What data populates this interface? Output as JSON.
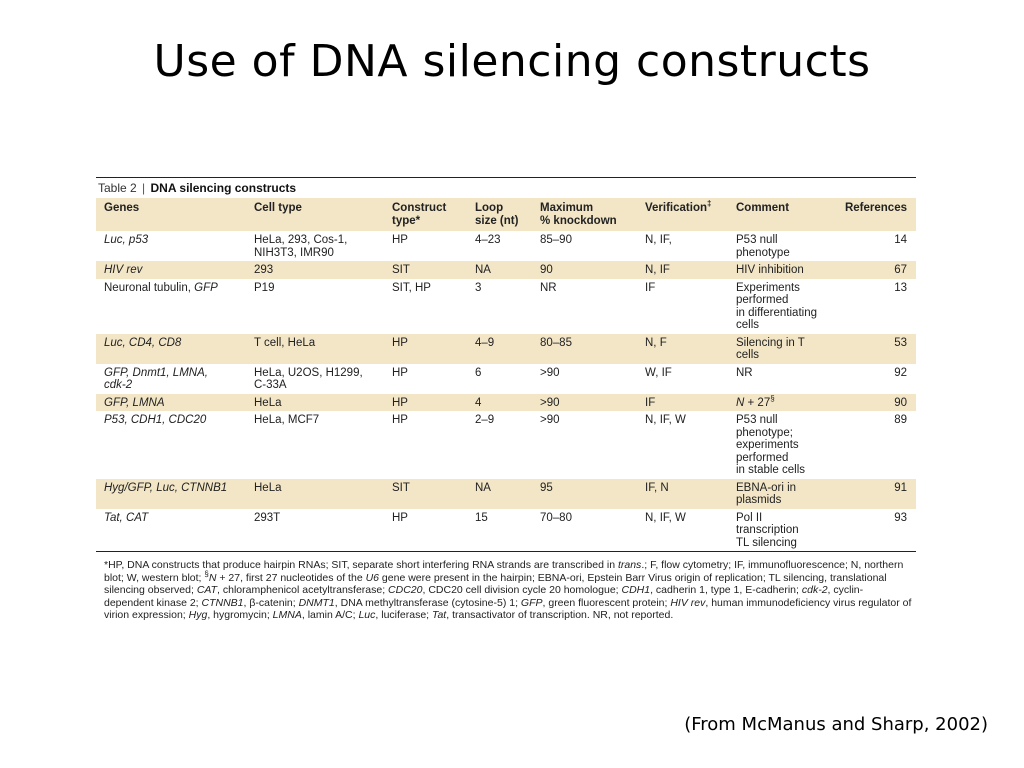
{
  "slide": {
    "title": "Use of DNA silencing constructs",
    "citation": "(From McManus and Sharp, 2002)"
  },
  "table": {
    "number": "Table 2",
    "separator": "|",
    "title": "DNA silencing constructs",
    "headers": {
      "genes": "Genes",
      "cell_type": "Cell type",
      "construct_1": "Construct",
      "construct_2": "type*",
      "loop_1": "Loop",
      "loop_2": "size (nt)",
      "maximum_1": "Maximum",
      "maximum_2": "% knockdown",
      "verification": "Verification",
      "verification_mark": "‡",
      "comment": "Comment",
      "references": "References"
    },
    "rows": [
      {
        "genes": [
          {
            "t": "Luc, p53",
            "i": true
          }
        ],
        "cell_type": [
          "HeLa, 293, Cos-1,",
          "NIH3T3, IMR90"
        ],
        "construct": "HP",
        "loop": "4–23",
        "knockdown": "85–90",
        "verification": "N, IF,",
        "comment": [
          [
            "P53 null phenotype",
            false
          ]
        ],
        "ref": "14"
      },
      {
        "genes": [
          {
            "t": "HIV rev",
            "i": true
          }
        ],
        "cell_type": [
          "293"
        ],
        "construct": "SIT",
        "loop": "NA",
        "knockdown": "90",
        "verification": "N, IF",
        "comment": [
          [
            "HIV inhibition",
            false
          ]
        ],
        "ref": "67"
      },
      {
        "genes": [
          {
            "t": "Neuronal tubulin, ",
            "i": false
          },
          {
            "t": "GFP",
            "i": true
          }
        ],
        "cell_type": [
          "P19"
        ],
        "construct": "SIT, HP",
        "loop": "3",
        "knockdown": "NR",
        "verification": "IF",
        "comment": [
          [
            "Experiments performed",
            false
          ],
          [
            "in differentiating cells",
            false
          ]
        ],
        "ref": "13"
      },
      {
        "genes": [
          {
            "t": "Luc, CD4, CD8",
            "i": true
          }
        ],
        "cell_type": [
          "T cell, HeLa"
        ],
        "construct": "HP",
        "loop": "4–9",
        "knockdown": "80–85",
        "verification": "N, F",
        "comment": [
          [
            "Silencing in T cells",
            false
          ]
        ],
        "ref": "53"
      },
      {
        "genes_lines": [
          "GFP, Dnmt1, LMNA,",
          "cdk-2"
        ],
        "genes_italic": true,
        "cell_type": [
          "HeLa, U2OS, H1299,",
          "C-33A"
        ],
        "construct": "HP",
        "loop": "6",
        "knockdown": ">90",
        "verification": "W, IF",
        "comment": [
          [
            "NR",
            false
          ]
        ],
        "ref": "92"
      },
      {
        "genes": [
          {
            "t": "GFP, LMNA",
            "i": true
          }
        ],
        "cell_type": [
          "HeLa"
        ],
        "construct": "HP",
        "loop": "4",
        "knockdown": ">90",
        "verification": "IF",
        "comment_italic_prefix": "N",
        "comment_rest": " + 27",
        "comment_sup": "§",
        "ref": "90"
      },
      {
        "genes": [
          {
            "t": "P53, CDH1, CDC20",
            "i": true
          }
        ],
        "cell_type": [
          "HeLa, MCF7"
        ],
        "construct": "HP",
        "loop": "2–9",
        "knockdown": ">90",
        "verification": "N, IF, W",
        "comment": [
          [
            "P53 null phenotype;",
            false
          ],
          [
            "experiments performed",
            false
          ],
          [
            "in stable cells",
            false
          ]
        ],
        "ref": "89"
      },
      {
        "genes": [
          {
            "t": "Hyg/GFP, Luc, CTNNB1",
            "i": true
          }
        ],
        "cell_type": [
          "HeLa"
        ],
        "construct": "SIT",
        "loop": "NA",
        "knockdown": "95",
        "verification": "IF, N",
        "comment": [
          [
            "EBNA-ori in plasmids",
            false
          ]
        ],
        "ref": "91"
      },
      {
        "genes": [
          {
            "t": "Tat, CAT",
            "i": true
          }
        ],
        "cell_type": [
          "293T"
        ],
        "construct": "HP",
        "loop": "15",
        "knockdown": "70–80",
        "verification": "N, IF, W",
        "comment": [
          [
            "Pol II transcription",
            false
          ],
          [
            "TL silencing",
            false
          ]
        ],
        "ref": "93"
      }
    ],
    "footnote_lines": [
      [
        [
          "*HP, DNA constructs that produce hairpin RNAs; SIT, separate short interfering RNA strands are transcribed in ",
          false
        ],
        [
          "trans",
          true
        ],
        [
          ".; F, flow cytometry; IF, immunofluorescence; N, northern",
          false
        ]
      ],
      [
        [
          "blot; W, western blot; ",
          false
        ],
        [
          "§",
          false,
          "sup"
        ],
        [
          "N",
          true
        ],
        [
          " + 27, first 27 nucleotides of the ",
          false
        ],
        [
          "U6",
          true
        ],
        [
          " gene were present in the hairpin; EBNA-ori, Epstein Barr Virus origin of replication; TL silencing, translational",
          false
        ]
      ],
      [
        [
          "silencing observed; ",
          false
        ],
        [
          "CAT",
          true
        ],
        [
          ", chloramphenicol acetyltransferase; ",
          false
        ],
        [
          "CDC20",
          true
        ],
        [
          ", CDC20 cell division cycle 20 homologue; ",
          false
        ],
        [
          "CDH1",
          true
        ],
        [
          ", cadherin 1, type 1, E-cadherin; ",
          false
        ],
        [
          "cdk-2",
          true
        ],
        [
          ", cyclin-",
          false
        ]
      ],
      [
        [
          "dependent kinase 2; ",
          false
        ],
        [
          "CTNNB1",
          true
        ],
        [
          ", β-catenin; ",
          false
        ],
        [
          "DNMT1",
          true
        ],
        [
          ", DNA methyltransferase (cytosine-5) 1; ",
          false
        ],
        [
          "GFP",
          true
        ],
        [
          ", green fluorescent protein; ",
          false
        ],
        [
          "HIV rev",
          true
        ],
        [
          ", human immunodeficiency virus regulator of",
          false
        ]
      ],
      [
        [
          "virion expression; ",
          false
        ],
        [
          "Hyg",
          true
        ],
        [
          ", hygromycin; ",
          false
        ],
        [
          "LMNA",
          true
        ],
        [
          ", lamin A/C; ",
          false
        ],
        [
          "Luc",
          true
        ],
        [
          ", luciferase; ",
          false
        ],
        [
          "Tat",
          true
        ],
        [
          ", transactivator of transcription. NR, not reported.",
          false
        ]
      ]
    ]
  },
  "colors": {
    "shade": "#f3e6c7",
    "rule": "#222222",
    "text": "#222222"
  }
}
